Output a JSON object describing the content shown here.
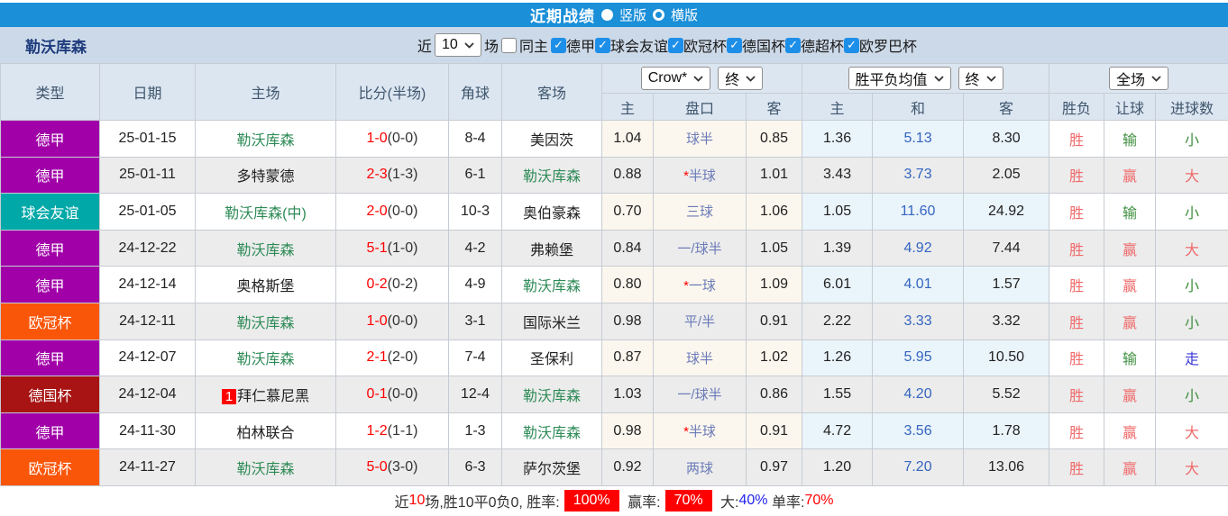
{
  "topbar": {
    "title": "近期战绩",
    "options": [
      {
        "label": "竖版",
        "selected": true
      },
      {
        "label": "横版",
        "selected": false
      }
    ]
  },
  "filters": {
    "team": "勒沃库森",
    "near_label": "近",
    "matches_count": "10",
    "matches_unit": "场",
    "same_home_label": "同主",
    "same_home_checked": false,
    "leagues": [
      "德甲",
      "球会友谊",
      "欧冠杯",
      "德国杯",
      "德超杯",
      "欧罗巴杯"
    ]
  },
  "table": {
    "columns": [
      "类型",
      "日期",
      "主场",
      "比分(半场)",
      "角球",
      "客场"
    ],
    "dropdowns": {
      "company": "Crow*",
      "company_time": "终",
      "avg": "胜平负均值",
      "avg_time": "终",
      "scope": "全场"
    },
    "subheaders": [
      "主",
      "盘口",
      "客",
      "主",
      "和",
      "客",
      "胜负",
      "让球",
      "进球数"
    ],
    "rows": [
      {
        "type": "德甲",
        "type_bg": "#a100a8",
        "date": "25-01-15",
        "home": "勒沃库森",
        "home_lev": true,
        "home_badge": "",
        "score": "1-0",
        "half": "(0-0)",
        "corner": "8-4",
        "away": "美因茨",
        "away_lev": false,
        "crow_home": "1.04",
        "handicap": "球半",
        "handicap_star": false,
        "crow_away": "0.85",
        "avg_home": "1.36",
        "avg_draw": "5.13",
        "avg_away": "8.30",
        "wdl": "胜",
        "wdl_c": "r",
        "let_res": "输",
        "let_c": "g",
        "goals": "小",
        "goals_c": "g"
      },
      {
        "type": "德甲",
        "type_bg": "#a100a8",
        "date": "25-01-11",
        "home": "多特蒙德",
        "home_lev": false,
        "home_badge": "",
        "score": "2-3",
        "half": "(1-3)",
        "corner": "6-1",
        "away": "勒沃库森",
        "away_lev": true,
        "crow_home": "0.88",
        "handicap": "半球",
        "handicap_star": true,
        "crow_away": "1.01",
        "avg_home": "3.43",
        "avg_draw": "3.73",
        "avg_away": "2.05",
        "wdl": "胜",
        "wdl_c": "r",
        "let_res": "赢",
        "let_c": "r",
        "goals": "大",
        "goals_c": "r"
      },
      {
        "type": "球会友谊",
        "type_bg": "#00a8a8",
        "date": "25-01-05",
        "home": "勒沃库森(中)",
        "home_lev": true,
        "home_badge": "",
        "score": "2-0",
        "half": "(0-0)",
        "corner": "10-3",
        "away": "奥伯豪森",
        "away_lev": false,
        "crow_home": "0.70",
        "handicap": "三球",
        "handicap_star": false,
        "crow_away": "1.06",
        "avg_home": "1.05",
        "avg_draw": "11.60",
        "avg_away": "24.92",
        "wdl": "胜",
        "wdl_c": "r",
        "let_res": "输",
        "let_c": "g",
        "goals": "小",
        "goals_c": "g"
      },
      {
        "type": "德甲",
        "type_bg": "#a100a8",
        "date": "24-12-22",
        "home": "勒沃库森",
        "home_lev": true,
        "home_badge": "",
        "score": "5-1",
        "half": "(1-0)",
        "corner": "4-2",
        "away": "弗赖堡",
        "away_lev": false,
        "crow_home": "0.84",
        "handicap": "一/球半",
        "handicap_star": false,
        "crow_away": "1.05",
        "avg_home": "1.39",
        "avg_draw": "4.92",
        "avg_away": "7.44",
        "wdl": "胜",
        "wdl_c": "r",
        "let_res": "赢",
        "let_c": "r",
        "goals": "大",
        "goals_c": "r"
      },
      {
        "type": "德甲",
        "type_bg": "#a100a8",
        "date": "24-12-14",
        "home": "奥格斯堡",
        "home_lev": false,
        "home_badge": "",
        "score": "0-2",
        "half": "(0-2)",
        "corner": "4-9",
        "away": "勒沃库森",
        "away_lev": true,
        "crow_home": "0.80",
        "handicap": "一球",
        "handicap_star": true,
        "crow_away": "1.09",
        "avg_home": "6.01",
        "avg_draw": "4.01",
        "avg_away": "1.57",
        "wdl": "胜",
        "wdl_c": "r",
        "let_res": "赢",
        "let_c": "r",
        "goals": "小",
        "goals_c": "g"
      },
      {
        "type": "欧冠杯",
        "type_bg": "#fa560a",
        "date": "24-12-11",
        "home": "勒沃库森",
        "home_lev": true,
        "home_badge": "",
        "score": "1-0",
        "half": "(0-0)",
        "corner": "3-1",
        "away": "国际米兰",
        "away_lev": false,
        "crow_home": "0.98",
        "handicap": "平/半",
        "handicap_star": false,
        "crow_away": "0.91",
        "avg_home": "2.22",
        "avg_draw": "3.33",
        "avg_away": "3.32",
        "wdl": "胜",
        "wdl_c": "r",
        "let_res": "赢",
        "let_c": "r",
        "goals": "小",
        "goals_c": "g"
      },
      {
        "type": "德甲",
        "type_bg": "#a100a8",
        "date": "24-12-07",
        "home": "勒沃库森",
        "home_lev": true,
        "home_badge": "",
        "score": "2-1",
        "half": "(2-0)",
        "corner": "7-4",
        "away": "圣保利",
        "away_lev": false,
        "crow_home": "0.87",
        "handicap": "球半",
        "handicap_star": false,
        "crow_away": "1.02",
        "avg_home": "1.26",
        "avg_draw": "5.95",
        "avg_away": "10.50",
        "wdl": "胜",
        "wdl_c": "r",
        "let_res": "输",
        "let_c": "g",
        "goals": "走",
        "goals_c": "b"
      },
      {
        "type": "德国杯",
        "type_bg": "#a81414",
        "date": "24-12-04",
        "home": "拜仁慕尼黑",
        "home_lev": false,
        "home_badge": "1",
        "score": "0-1",
        "half": "(0-0)",
        "corner": "12-4",
        "away": "勒沃库森",
        "away_lev": true,
        "crow_home": "1.03",
        "handicap": "一/球半",
        "handicap_star": false,
        "crow_away": "0.86",
        "avg_home": "1.55",
        "avg_draw": "4.20",
        "avg_away": "5.52",
        "wdl": "胜",
        "wdl_c": "r",
        "let_res": "赢",
        "let_c": "r",
        "goals": "小",
        "goals_c": "g"
      },
      {
        "type": "德甲",
        "type_bg": "#a100a8",
        "date": "24-11-30",
        "home": "柏林联合",
        "home_lev": false,
        "home_badge": "",
        "score": "1-2",
        "half": "(1-1)",
        "corner": "1-3",
        "away": "勒沃库森",
        "away_lev": true,
        "crow_home": "0.98",
        "handicap": "半球",
        "handicap_star": true,
        "crow_away": "0.91",
        "avg_home": "4.72",
        "avg_draw": "3.56",
        "avg_away": "1.78",
        "wdl": "胜",
        "wdl_c": "r",
        "let_res": "赢",
        "let_c": "r",
        "goals": "大",
        "goals_c": "r"
      },
      {
        "type": "欧冠杯",
        "type_bg": "#fa560a",
        "date": "24-11-27",
        "home": "勒沃库森",
        "home_lev": true,
        "home_badge": "",
        "score": "5-0",
        "half": "(3-0)",
        "corner": "6-3",
        "away": "萨尔茨堡",
        "away_lev": false,
        "crow_home": "0.92",
        "handicap": "两球",
        "handicap_star": false,
        "crow_away": "0.97",
        "avg_home": "1.20",
        "avg_draw": "7.20",
        "avg_away": "13.06",
        "wdl": "胜",
        "wdl_c": "r",
        "let_res": "赢",
        "let_c": "r",
        "goals": "大",
        "goals_c": "r"
      }
    ]
  },
  "summary": {
    "segments": [
      {
        "text": "近",
        "style": "plain"
      },
      {
        "text": "10",
        "style": "red"
      },
      {
        "text": "场,胜10平0负0, 胜率:",
        "style": "plain"
      },
      {
        "text": "100%",
        "style": "badge"
      },
      {
        "text": " 赢率:",
        "style": "plain"
      },
      {
        "text": "70%",
        "style": "badge"
      },
      {
        "text": " 大:",
        "style": "plain"
      },
      {
        "text": "40%",
        "style": "blue"
      },
      {
        "text": " 单率:",
        "style": "plain"
      },
      {
        "text": "70%",
        "style": "red"
      }
    ]
  },
  "colors": {
    "topbar_blue": "#1b8fd8",
    "filterbar_bg": "#ccd9e8",
    "header_bg": "#dce6f1",
    "stripe_bg": "#ececec",
    "crow_cell_bg": "#fcf7ee",
    "avg_cell_bg": "#eaf4fb",
    "league_dejia": "#a100a8",
    "league_friendly": "#00a8a8",
    "league_ucl": "#fa560a",
    "league_dfb": "#a81414",
    "leverkusen_green": "#2e8b57",
    "score_red": "#ff0000",
    "win_red": "#ef6a6a",
    "lose_green": "#3f8f3f",
    "push_blue": "#3a3ad9",
    "checkbox_blue": "#1e8fe8"
  }
}
